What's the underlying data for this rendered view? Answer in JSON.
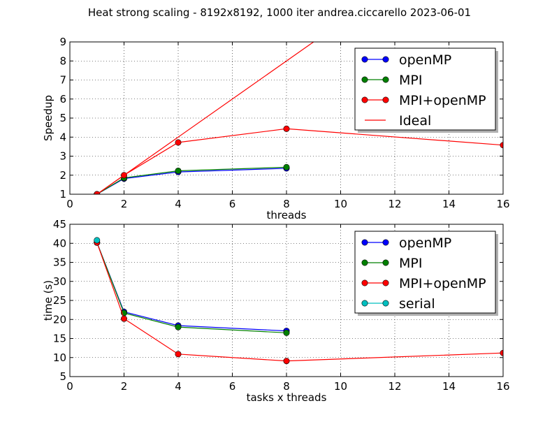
{
  "title": "Heat strong scaling - 8192x8192,  1000 iter  andrea.ciccarello 2023-06-01",
  "chart_data": [
    {
      "type": "line",
      "xlabel": "threads",
      "ylabel": "Speedup",
      "xlim": [
        0,
        16
      ],
      "ylim": [
        1,
        9
      ],
      "xticks": [
        0,
        2,
        4,
        6,
        8,
        10,
        12,
        14,
        16
      ],
      "yticks": [
        1,
        2,
        3,
        4,
        5,
        6,
        7,
        8,
        9
      ],
      "grid": true,
      "legend_position": "top-right",
      "series": [
        {
          "name": "openMP",
          "color": "#0000ff",
          "marker": "circle",
          "x": [
            1,
            2,
            4,
            8
          ],
          "y": [
            1.0,
            1.82,
            2.17,
            2.36
          ]
        },
        {
          "name": "MPI",
          "color": "#008000",
          "marker": "circle",
          "x": [
            1,
            2,
            4,
            8
          ],
          "y": [
            1.0,
            1.86,
            2.23,
            2.42
          ]
        },
        {
          "name": "MPI+openMP",
          "color": "#ff0000",
          "marker": "circle",
          "x": [
            1,
            2,
            4,
            8,
            16
          ],
          "y": [
            1.0,
            2.0,
            3.72,
            4.44,
            3.58
          ]
        },
        {
          "name": "Ideal",
          "color": "#ff0000",
          "marker": "none",
          "x": [
            1,
            16
          ],
          "y": [
            1,
            16
          ]
        }
      ]
    },
    {
      "type": "line",
      "xlabel": "tasks x threads",
      "ylabel": "time (s)",
      "xlim": [
        0,
        16
      ],
      "ylim": [
        5,
        45
      ],
      "xticks": [
        0,
        2,
        4,
        6,
        8,
        10,
        12,
        14,
        16
      ],
      "yticks": [
        5,
        10,
        15,
        20,
        25,
        30,
        35,
        40,
        45
      ],
      "grid": true,
      "legend_position": "top-right",
      "series": [
        {
          "name": "openMP",
          "color": "#0000ff",
          "marker": "circle",
          "x": [
            1,
            2,
            4,
            8
          ],
          "y": [
            40.2,
            22.0,
            18.4,
            17.0
          ]
        },
        {
          "name": "MPI",
          "color": "#008000",
          "marker": "circle",
          "x": [
            1,
            2,
            4,
            8
          ],
          "y": [
            40.2,
            21.7,
            18.0,
            16.5
          ]
        },
        {
          "name": "MPI+openMP",
          "color": "#ff0000",
          "marker": "circle",
          "x": [
            1,
            2,
            4,
            8,
            16
          ],
          "y": [
            40.2,
            20.2,
            10.9,
            9.1,
            11.2
          ]
        },
        {
          "name": "serial",
          "color": "#00bfbf",
          "marker": "circle",
          "x": [
            1
          ],
          "y": [
            40.8
          ]
        }
      ]
    }
  ]
}
